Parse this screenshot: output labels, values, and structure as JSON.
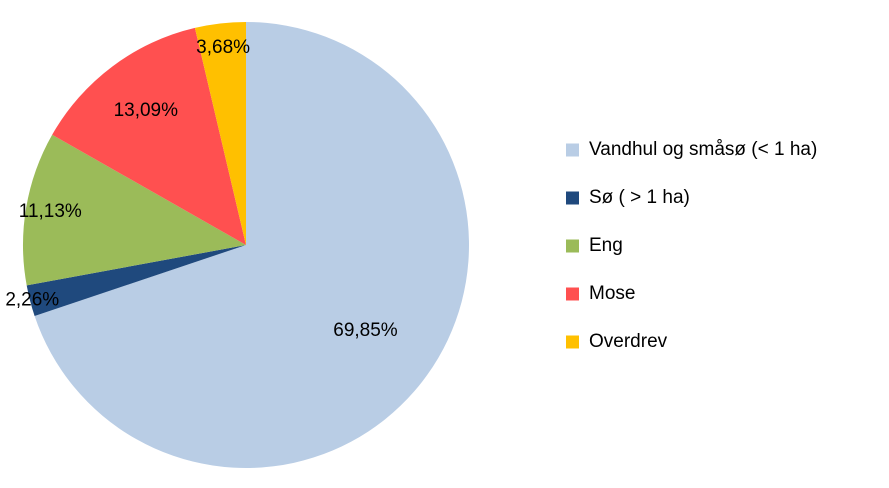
{
  "chart_data": {
    "type": "pie",
    "title": "",
    "legend_position": "right",
    "slices": [
      {
        "name": "Vandhul og småsø (< 1 ha)",
        "value": 69.85,
        "label": "69,85%",
        "color": "#B9CDE5"
      },
      {
        "name": "Sø ( > 1 ha)",
        "value": 2.26,
        "label": "2,26%",
        "color": "#1F497D"
      },
      {
        "name": "Eng",
        "value": 11.13,
        "label": "11,13%",
        "color": "#9BBB59"
      },
      {
        "name": "Mose",
        "value": 13.09,
        "label": "13,09%",
        "color": "#FF5050"
      },
      {
        "name": "Overdrev",
        "value": 3.68,
        "label": "3,68%",
        "color": "#FFC000"
      }
    ]
  }
}
